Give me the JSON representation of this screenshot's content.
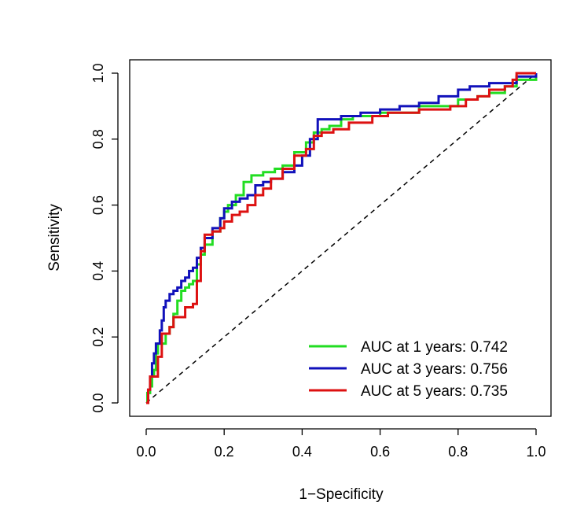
{
  "chart_data": {
    "type": "line",
    "title": "",
    "xlabel": "1−Specificity",
    "ylabel": "Sensitivity",
    "xlim": [
      0,
      1
    ],
    "ylim": [
      0,
      1
    ],
    "xticks": [
      "0.0",
      "0.2",
      "0.4",
      "0.6",
      "0.8",
      "1.0"
    ],
    "yticks": [
      "0.0",
      "0.2",
      "0.4",
      "0.6",
      "0.8",
      "1.0"
    ],
    "grid": false,
    "legend_position": "bottom-right",
    "reference_line": {
      "style": "dashed",
      "color": "#000000",
      "from": [
        0,
        0
      ],
      "to": [
        1,
        1
      ]
    },
    "series": [
      {
        "name": "AUC at 1 years: 0.742",
        "color": "#22dd22",
        "x": [
          0,
          0.003,
          0.01,
          0.015,
          0.02,
          0.025,
          0.03,
          0.04,
          0.05,
          0.06,
          0.07,
          0.08,
          0.09,
          0.1,
          0.11,
          0.12,
          0.13,
          0.14,
          0.15,
          0.17,
          0.19,
          0.2,
          0.21,
          0.23,
          0.25,
          0.27,
          0.3,
          0.33,
          0.35,
          0.38,
          0.41,
          0.43,
          0.45,
          0.47,
          0.5,
          0.53,
          0.6,
          0.7,
          0.8,
          0.82,
          0.85,
          0.88,
          0.9,
          0.92,
          0.95,
          1.0
        ],
        "y": [
          0,
          0.03,
          0.05,
          0.08,
          0.1,
          0.15,
          0.18,
          0.18,
          0.21,
          0.23,
          0.27,
          0.31,
          0.34,
          0.35,
          0.36,
          0.37,
          0.42,
          0.45,
          0.48,
          0.52,
          0.56,
          0.58,
          0.6,
          0.63,
          0.67,
          0.69,
          0.7,
          0.71,
          0.72,
          0.76,
          0.79,
          0.82,
          0.83,
          0.84,
          0.86,
          0.87,
          0.88,
          0.9,
          0.92,
          0.92,
          0.93,
          0.94,
          0.94,
          0.96,
          0.98,
          1.0
        ]
      },
      {
        "name": "AUC at 3 years: 0.756",
        "color": "#1111bb",
        "x": [
          0,
          0.005,
          0.01,
          0.015,
          0.02,
          0.025,
          0.035,
          0.04,
          0.045,
          0.05,
          0.06,
          0.07,
          0.08,
          0.09,
          0.1,
          0.11,
          0.12,
          0.13,
          0.14,
          0.15,
          0.17,
          0.19,
          0.2,
          0.22,
          0.24,
          0.26,
          0.28,
          0.3,
          0.32,
          0.35,
          0.38,
          0.4,
          0.42,
          0.44,
          0.47,
          0.5,
          0.55,
          0.6,
          0.65,
          0.7,
          0.75,
          0.8,
          0.83,
          0.88,
          0.92,
          0.95,
          1.0
        ],
        "y": [
          0,
          0.04,
          0.08,
          0.12,
          0.15,
          0.18,
          0.22,
          0.25,
          0.29,
          0.31,
          0.33,
          0.34,
          0.35,
          0.37,
          0.38,
          0.4,
          0.41,
          0.44,
          0.47,
          0.5,
          0.53,
          0.56,
          0.59,
          0.61,
          0.62,
          0.63,
          0.66,
          0.67,
          0.68,
          0.7,
          0.72,
          0.75,
          0.8,
          0.86,
          0.86,
          0.87,
          0.88,
          0.89,
          0.9,
          0.91,
          0.93,
          0.95,
          0.96,
          0.97,
          0.97,
          0.99,
          1.0
        ]
      },
      {
        "name": "AUC at 5 years: 0.735",
        "color": "#dd1111",
        "x": [
          0,
          0.005,
          0.01,
          0.02,
          0.03,
          0.04,
          0.05,
          0.06,
          0.07,
          0.08,
          0.1,
          0.11,
          0.12,
          0.13,
          0.14,
          0.15,
          0.17,
          0.19,
          0.2,
          0.22,
          0.24,
          0.26,
          0.28,
          0.3,
          0.32,
          0.35,
          0.38,
          0.41,
          0.43,
          0.45,
          0.48,
          0.52,
          0.58,
          0.62,
          0.7,
          0.78,
          0.82,
          0.85,
          0.88,
          0.92,
          0.94,
          0.95,
          1.0
        ],
        "y": [
          0,
          0.04,
          0.08,
          0.08,
          0.14,
          0.21,
          0.21,
          0.23,
          0.26,
          0.26,
          0.29,
          0.29,
          0.3,
          0.37,
          0.46,
          0.51,
          0.52,
          0.53,
          0.55,
          0.57,
          0.58,
          0.6,
          0.63,
          0.65,
          0.68,
          0.71,
          0.75,
          0.77,
          0.81,
          0.82,
          0.83,
          0.85,
          0.87,
          0.88,
          0.89,
          0.9,
          0.92,
          0.93,
          0.95,
          0.96,
          0.98,
          1.0,
          1.0
        ]
      }
    ]
  }
}
